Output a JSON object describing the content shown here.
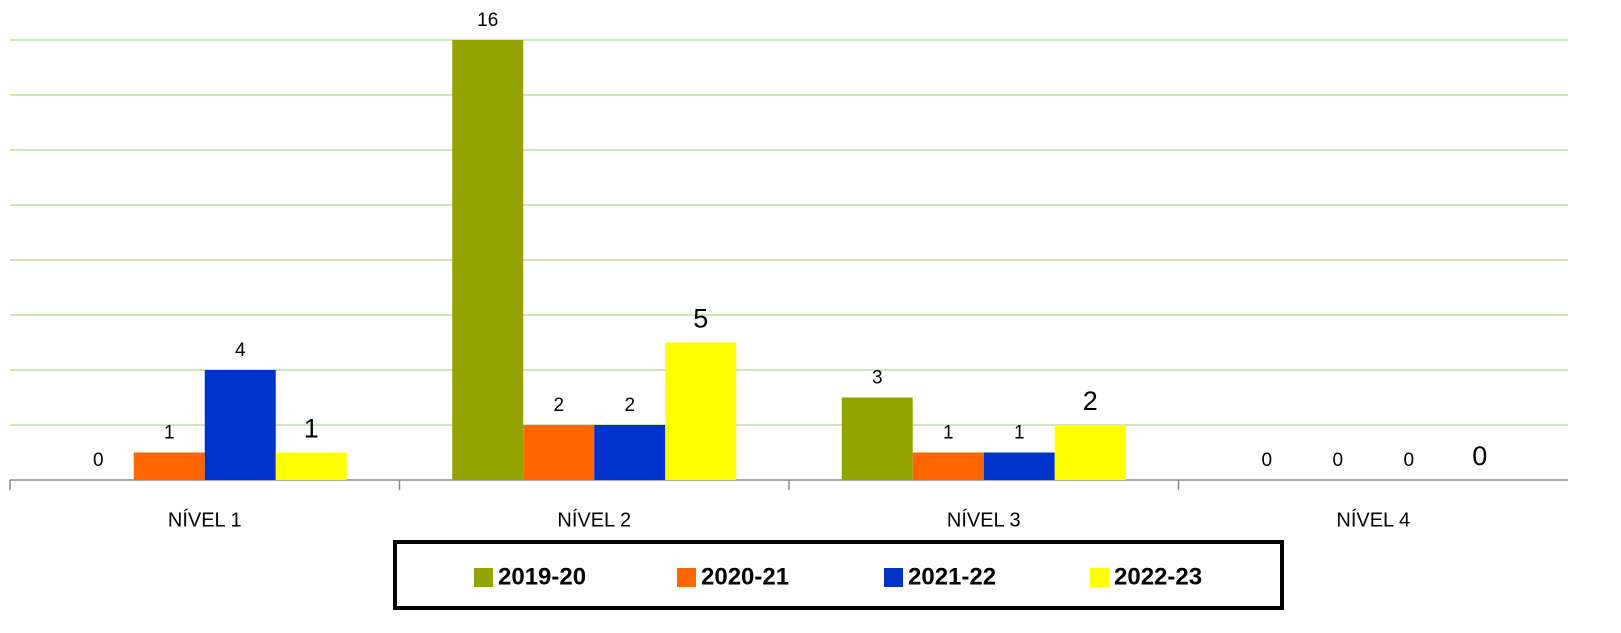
{
  "chart_data": {
    "type": "bar",
    "categories": [
      "NÍVEL 1",
      "NÍVEL 2",
      "NÍVEL 3",
      "NÍVEL 4"
    ],
    "series": [
      {
        "name": "2019-20",
        "color": "#94a300",
        "values": [
          0,
          16,
          3,
          0
        ]
      },
      {
        "name": "2020-21",
        "color": "#ff6600",
        "values": [
          1,
          2,
          1,
          0
        ]
      },
      {
        "name": "2021-22",
        "color": "#0033cc",
        "values": [
          4,
          2,
          1,
          0
        ]
      },
      {
        "name": "2022-23",
        "color": "#ffff00",
        "values": [
          1,
          5,
          2,
          0
        ]
      }
    ],
    "ylim": [
      0,
      16
    ],
    "yticks": [
      0,
      2,
      4,
      6,
      8,
      10,
      12,
      14,
      16
    ],
    "grid": true,
    "legend": "bottom"
  }
}
